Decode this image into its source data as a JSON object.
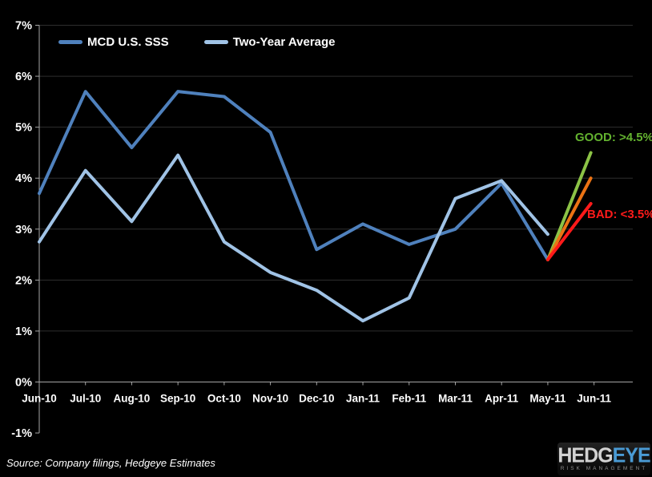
{
  "chart_data": {
    "type": "line",
    "categories": [
      "Jun-10",
      "Jul-10",
      "Aug-10",
      "Sep-10",
      "Oct-10",
      "Nov-10",
      "Dec-10",
      "Jan-11",
      "Feb-11",
      "Mar-11",
      "Apr-11",
      "May-11",
      "Jun-11"
    ],
    "series": [
      {
        "name": "MCD U.S. SSS",
        "color": "#4F81BD",
        "values": [
          3.7,
          5.7,
          4.6,
          5.7,
          5.6,
          4.9,
          2.6,
          3.1,
          2.7,
          3.0,
          3.9,
          2.4,
          null
        ]
      },
      {
        "name": "Two-Year Average",
        "color": "#A0C3E6",
        "values": [
          2.75,
          4.15,
          3.15,
          4.45,
          2.75,
          2.15,
          1.8,
          1.2,
          1.65,
          3.6,
          3.95,
          2.9,
          null
        ]
      }
    ],
    "projections": [
      {
        "name": "good",
        "color": "#8CC346",
        "from_index": 11,
        "from_value": 2.4,
        "to_index": 12,
        "to_value": 4.5
      },
      {
        "name": "mid",
        "color": "#EB7314",
        "from_index": 11,
        "from_value": 2.4,
        "to_index": 12,
        "to_value": 4.0
      },
      {
        "name": "bad",
        "color": "#FE1A1A",
        "from_index": 11,
        "from_value": 2.4,
        "to_index": 12,
        "to_value": 3.5
      }
    ],
    "y_ticks": [
      {
        "value": 7,
        "label": "7%"
      },
      {
        "value": 6,
        "label": "6%"
      },
      {
        "value": 5,
        "label": "5%"
      },
      {
        "value": 4,
        "label": "4%"
      },
      {
        "value": 3,
        "label": "3%"
      },
      {
        "value": 2,
        "label": "2%"
      },
      {
        "value": 1,
        "label": "1%"
      },
      {
        "value": 0,
        "label": "0%"
      },
      {
        "value": -1,
        "label": "-1%"
      }
    ],
    "ylim": [
      -1,
      7
    ],
    "grid": true,
    "legend_position": "top-left",
    "title": "",
    "xlabel": "",
    "ylabel": ""
  },
  "legend": {
    "items": [
      {
        "label": "MCD U.S. SSS",
        "color": "#4F81BD"
      },
      {
        "label": "Two-Year Average",
        "color": "#A0C3E6"
      }
    ]
  },
  "annotations": {
    "good": {
      "text": "GOOD: >4.5%",
      "color": "#63B22F"
    },
    "bad": {
      "text": "BAD: <3.5%",
      "color": "#FE1A1A"
    }
  },
  "footer": {
    "source": "Source: Company filings, Hedgeye Estimates"
  },
  "logo": {
    "part1": "HEDG",
    "part2": "EYE",
    "tagline": "RISK MANAGEMENT"
  },
  "colors": {
    "background": "#000000",
    "text": "#FFFFFF",
    "gridline": "#2E2E2E",
    "axis": "#A6A6A6"
  }
}
